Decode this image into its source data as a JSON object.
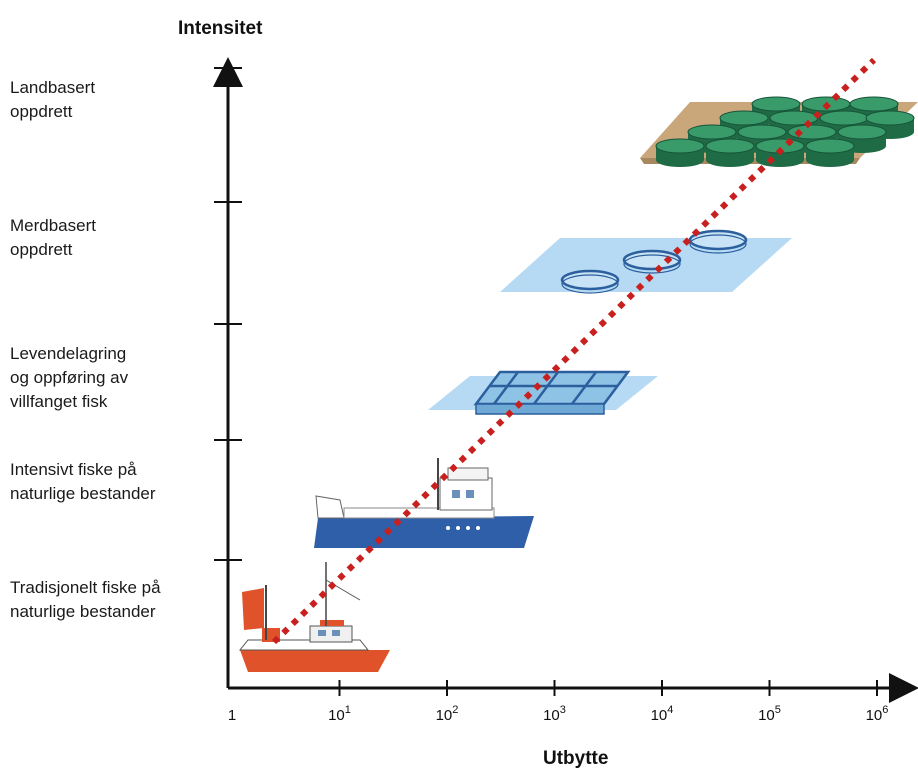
{
  "y_axis_title": "Intensitet",
  "x_axis_title": "Utbytte",
  "levels": [
    "Landbasert\noppdrett",
    "Merdbasert\noppdrett",
    "Levendelagring\nog oppføring av\nvillfanget fisk",
    "Intensivt fiske på\nnaturlige bestander",
    "Tradisjonelt fiske på\nnaturlige bestander"
  ],
  "x_ticks": [
    {
      "base": "1",
      "exp": ""
    },
    {
      "base": "10",
      "exp": "1"
    },
    {
      "base": "10",
      "exp": "2"
    },
    {
      "base": "10",
      "exp": "3"
    },
    {
      "base": "10",
      "exp": "4"
    },
    {
      "base": "10",
      "exp": "5"
    },
    {
      "base": "10",
      "exp": "6"
    }
  ],
  "colors": {
    "axis": "#111111",
    "trend_line": "#c8201e",
    "tank": "#2e8a5a",
    "base_tan": "#c9a77a",
    "water": "#a9d4f2",
    "net": "#2b5f9e",
    "boat_blue": "#2e5fa8",
    "boat_red": "#e0522a"
  },
  "icons": [
    "tank-farm-icon",
    "net-pen-icon",
    "holding-pen-icon",
    "trawler-icon",
    "fishing-boat-icon"
  ]
}
